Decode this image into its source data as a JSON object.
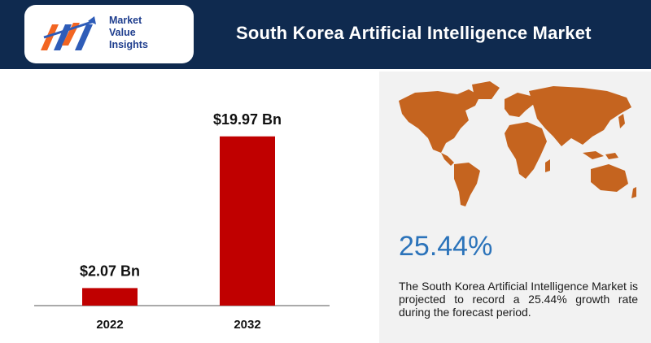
{
  "header": {
    "title": "South Korea Artificial  Intelligence  Market"
  },
  "logo": {
    "line1": "Market",
    "line2": "Value",
    "line3": "Insights"
  },
  "chart_data": {
    "type": "bar",
    "categories": [
      "2022",
      "2032"
    ],
    "values": [
      2.07,
      19.97
    ],
    "data_labels": [
      "$2.07 Bn",
      "$19.97 Bn"
    ],
    "title": "",
    "xlabel": "",
    "ylabel": "",
    "ylim": [
      0,
      23.5
    ],
    "bar_color": "#c00000",
    "grid": false
  },
  "stat": {
    "cagr": "25.44%",
    "description": "The South Korea Artificial Intelligence Market is projected to record a 25.44% growth rate during the forecast period."
  },
  "colors": {
    "header_bg": "#0f2a4f",
    "accent_blue": "#2b73ba",
    "map_color": "#c5641f",
    "panel_bg": "#f2f2f2"
  }
}
